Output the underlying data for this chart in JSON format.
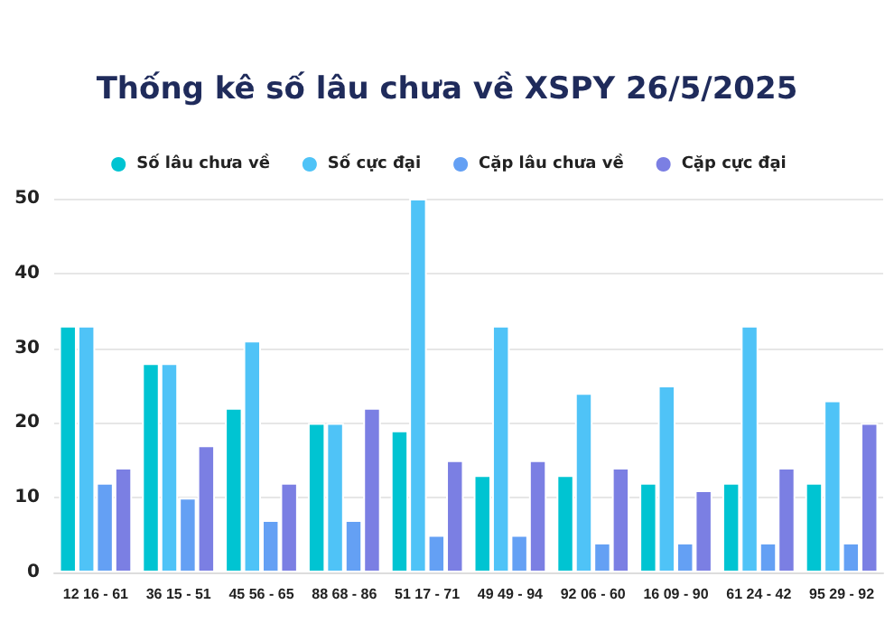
{
  "chart_data": {
    "type": "bar",
    "title": "Thống kê số lâu chưa về XSPY 26/5/2025",
    "categories": [
      "12 16 - 61",
      "36 15 - 51",
      "45 56 - 65",
      "88 68 - 86",
      "51 17 - 71",
      "49 49 - 94",
      "92 06 - 60",
      "16 09 - 90",
      "61 24 - 42",
      "95 29 - 92"
    ],
    "series": [
      {
        "name": "Số lâu chưa về",
        "color": "#00c4d2",
        "values": [
          33,
          28,
          22,
          20,
          19,
          13,
          13,
          12,
          12,
          12
        ]
      },
      {
        "name": "Số cực đại",
        "color": "#4fc3f7",
        "values": [
          33,
          28,
          31,
          20,
          50,
          33,
          24,
          25,
          33,
          23
        ]
      },
      {
        "name": "Cặp lâu chưa về",
        "color": "#64a0f4",
        "values": [
          12,
          10,
          7,
          7,
          5,
          5,
          4,
          4,
          4,
          4
        ]
      },
      {
        "name": "Cặp cực đại",
        "color": "#7b7fe3",
        "values": [
          14,
          17,
          12,
          22,
          15,
          15,
          14,
          11,
          14,
          20
        ]
      }
    ],
    "ylim": [
      0,
      50
    ],
    "yticks": [
      0,
      10,
      20,
      30,
      40,
      50
    ],
    "grid": "y",
    "legend": "top"
  }
}
